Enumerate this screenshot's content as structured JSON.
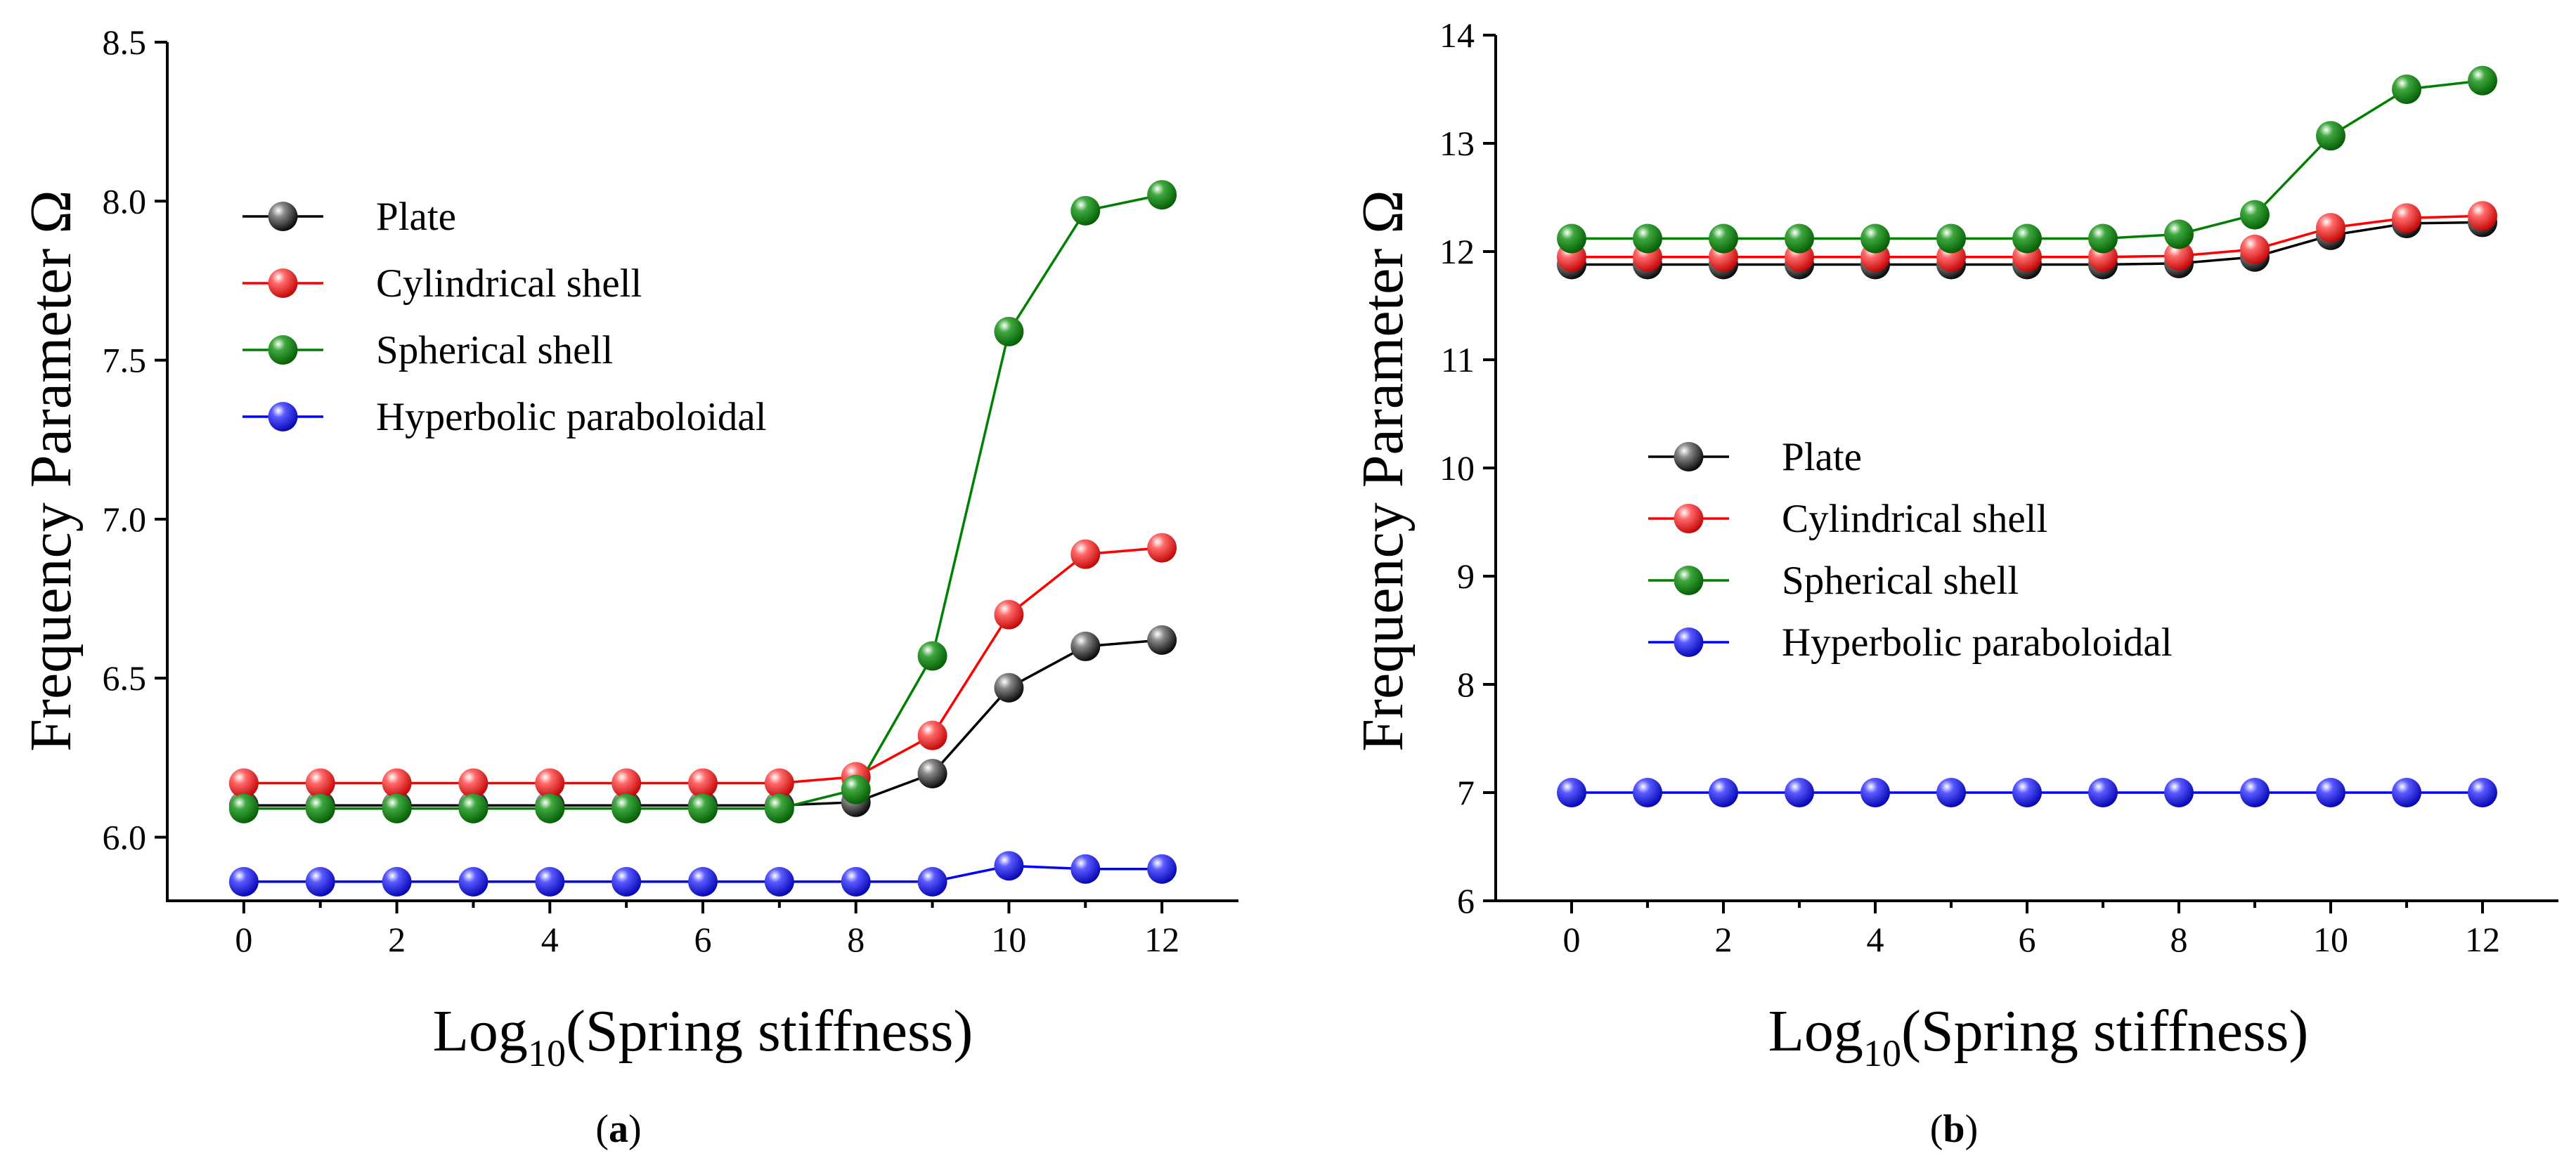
{
  "chart_data": [
    {
      "type": "line",
      "panel_label": "a",
      "title": "",
      "xlabel": "Log10(Spring stiffness)",
      "xlabel_base": "Log",
      "xlabel_sub": "10",
      "xlabel_rest": "(Spring stiffness)",
      "ylabel": "Frequency Parameter Ω",
      "xlim": [
        -1,
        13
      ],
      "ylim": [
        5.8,
        8.5
      ],
      "xticks": [
        0,
        2,
        4,
        6,
        8,
        10,
        12
      ],
      "xtick_labels": [
        "0",
        "2",
        "4",
        "6",
        "8",
        "10",
        "12"
      ],
      "yticks": [
        6.0,
        6.5,
        7.0,
        7.5,
        8.0,
        8.5
      ],
      "ytick_labels": [
        "6.0",
        "6.5",
        "7.0",
        "7.5",
        "8.0",
        "8.5"
      ],
      "legend_position": "upper-left",
      "x": [
        0,
        1,
        2,
        3,
        4,
        5,
        6,
        7,
        8,
        9,
        10,
        11,
        12
      ],
      "series": [
        {
          "name": "Plate",
          "color": "#000000",
          "values": [
            6.1,
            6.1,
            6.1,
            6.1,
            6.1,
            6.1,
            6.1,
            6.1,
            6.11,
            6.2,
            6.47,
            6.6,
            6.62
          ]
        },
        {
          "name": "Cylindrical shell",
          "color": "#ff0000",
          "values": [
            6.17,
            6.17,
            6.17,
            6.17,
            6.17,
            6.17,
            6.17,
            6.17,
            6.19,
            6.32,
            6.7,
            6.89,
            6.91
          ]
        },
        {
          "name": "Spherical shell",
          "color": "#008000",
          "values": [
            6.09,
            6.09,
            6.09,
            6.09,
            6.09,
            6.09,
            6.09,
            6.09,
            6.15,
            6.57,
            7.59,
            7.97,
            8.02
          ]
        },
        {
          "name": "Hyperbolic paraboloidal",
          "color": "#0000ff",
          "values": [
            5.86,
            5.86,
            5.86,
            5.86,
            5.86,
            5.86,
            5.86,
            5.86,
            5.86,
            5.86,
            5.91,
            5.9,
            5.9
          ]
        }
      ]
    },
    {
      "type": "line",
      "panel_label": "b",
      "title": "",
      "xlabel": "Log10(Spring stiffness)",
      "xlabel_base": "Log",
      "xlabel_sub": "10",
      "xlabel_rest": "(Spring stiffness)",
      "ylabel": "Frequency Parameter Ω",
      "xlim": [
        -1,
        13
      ],
      "ylim": [
        6,
        14
      ],
      "xticks": [
        0,
        2,
        4,
        6,
        8,
        10,
        12
      ],
      "xtick_labels": [
        "0",
        "2",
        "4",
        "6",
        "8",
        "10",
        "12"
      ],
      "yticks": [
        6,
        7,
        8,
        9,
        10,
        11,
        12,
        13,
        14
      ],
      "ytick_labels": [
        "6",
        "7",
        "8",
        "9",
        "10",
        "11",
        "12",
        "13",
        "14"
      ],
      "legend_position": "center-left",
      "x": [
        0,
        1,
        2,
        3,
        4,
        5,
        6,
        7,
        8,
        9,
        10,
        11,
        12
      ],
      "series": [
        {
          "name": "Plate",
          "color": "#000000",
          "values": [
            11.88,
            11.88,
            11.88,
            11.88,
            11.88,
            11.88,
            11.88,
            11.88,
            11.89,
            11.95,
            12.15,
            12.26,
            12.27
          ]
        },
        {
          "name": "Cylindrical shell",
          "color": "#ff0000",
          "values": [
            11.95,
            11.95,
            11.95,
            11.95,
            11.95,
            11.95,
            11.95,
            11.95,
            11.96,
            12.02,
            12.22,
            12.31,
            12.33
          ]
        },
        {
          "name": "Spherical shell",
          "color": "#008000",
          "values": [
            12.12,
            12.12,
            12.12,
            12.12,
            12.12,
            12.12,
            12.12,
            12.12,
            12.16,
            12.34,
            13.07,
            13.5,
            13.58
          ]
        },
        {
          "name": "Hyperbolic paraboloidal",
          "color": "#0000ff",
          "values": [
            7.0,
            7.0,
            7.0,
            7.0,
            7.0,
            7.0,
            7.0,
            7.0,
            7.0,
            7.0,
            7.0,
            7.0,
            7.0
          ]
        }
      ]
    }
  ]
}
